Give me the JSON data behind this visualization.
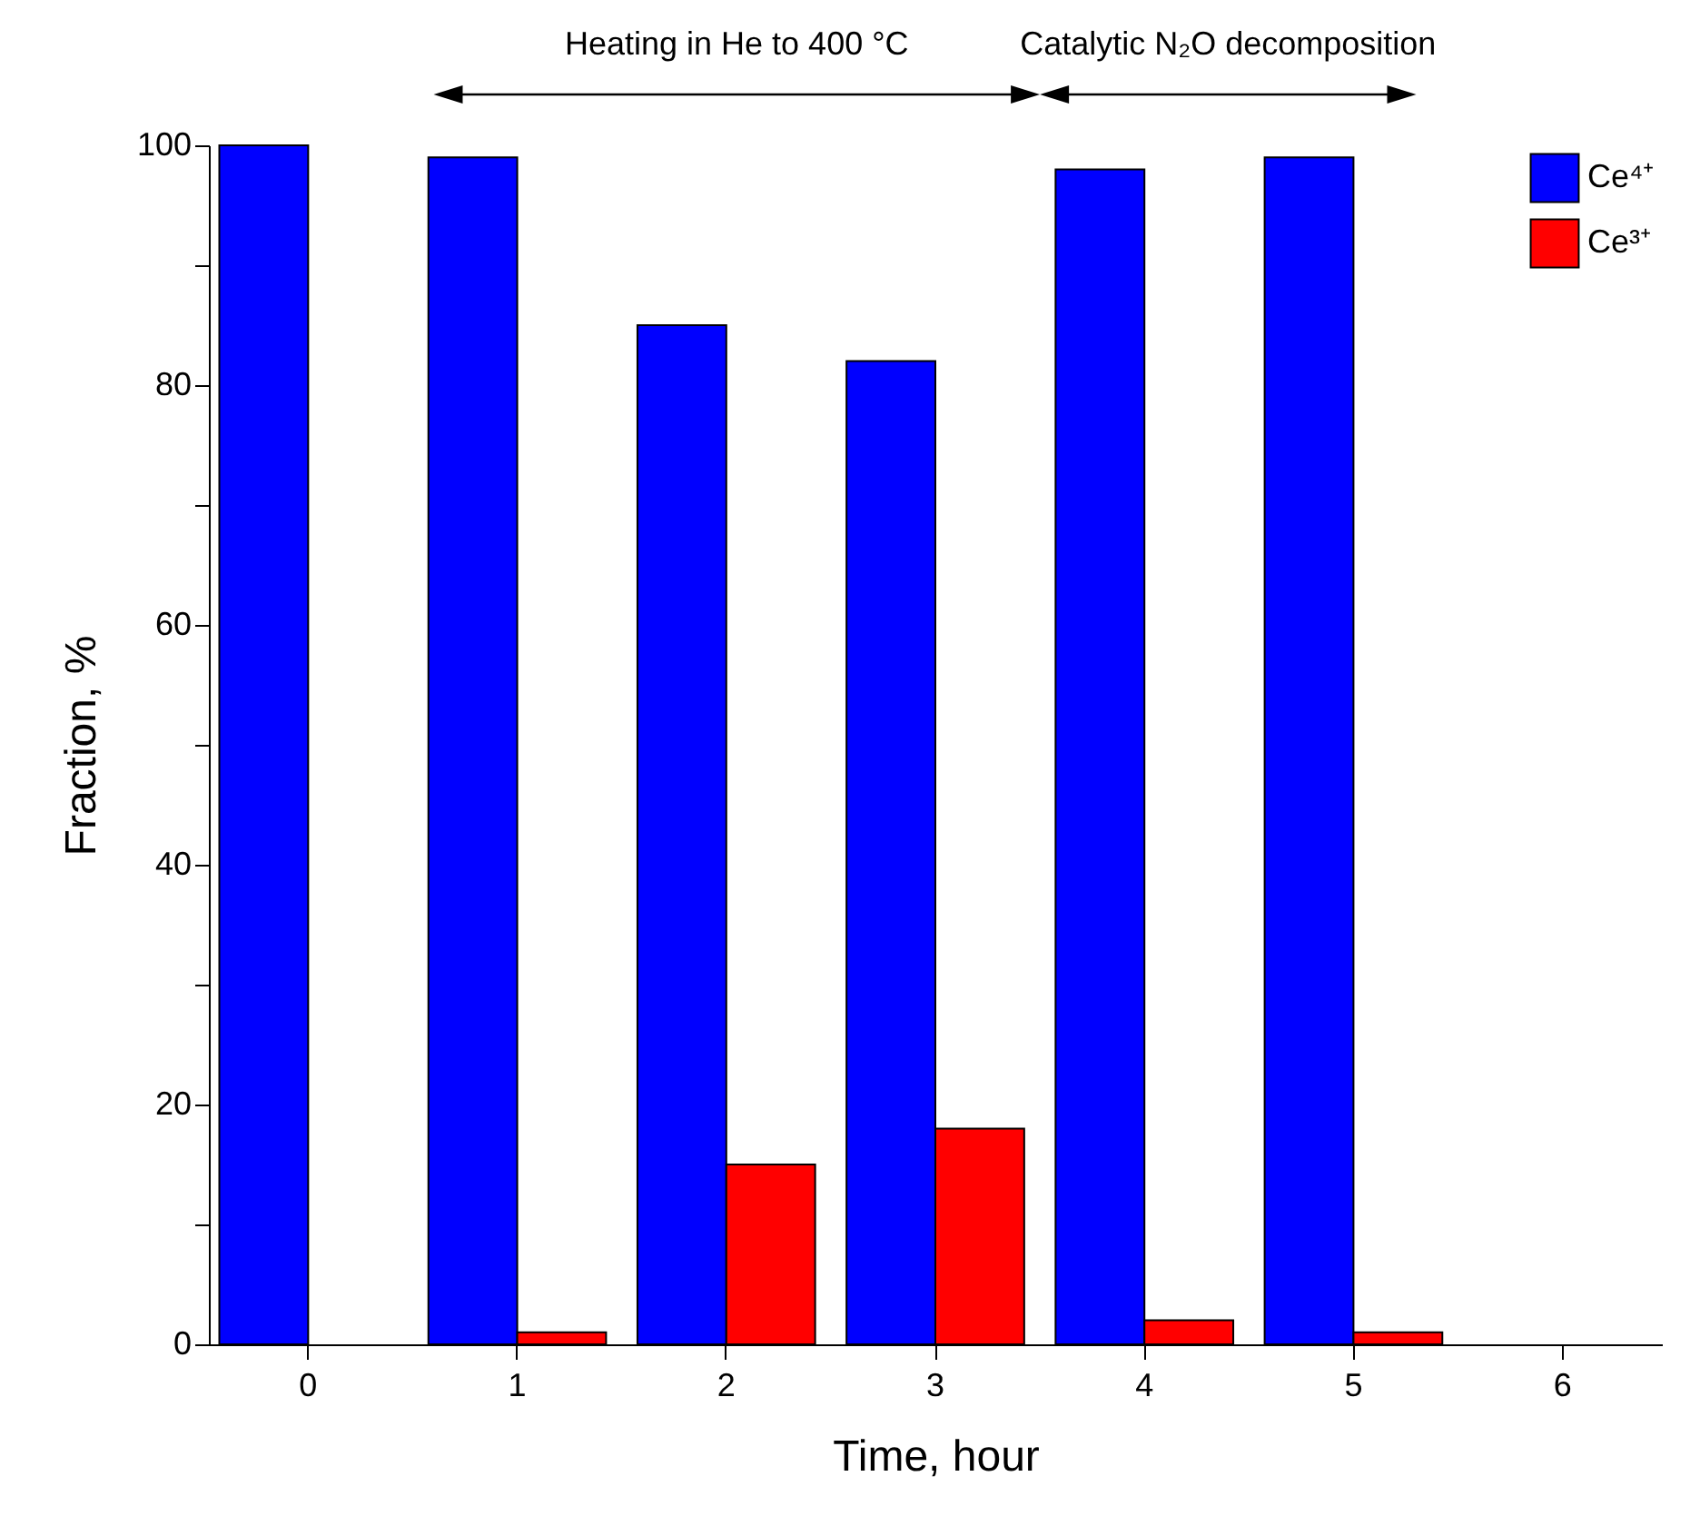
{
  "chart_data": {
    "type": "bar",
    "xlabel": "Time, hour",
    "ylabel": "Fraction, %",
    "categories": [
      "0",
      "1",
      "2",
      "3",
      "4",
      "5",
      "6"
    ],
    "series": [
      {
        "name": "Ce⁴⁺",
        "color": "#0000ff",
        "values": [
          100,
          99,
          85,
          82,
          98,
          99,
          null
        ]
      },
      {
        "name": "Ce³⁺",
        "color": "#ff0000",
        "values": [
          null,
          1,
          15,
          18,
          2,
          1,
          null
        ]
      }
    ],
    "ylim": [
      0,
      100
    ],
    "yticks": [
      0,
      {
        "value": 10,
        "label": null
      },
      20,
      {
        "value": 30,
        "label": null
      },
      40,
      {
        "value": 50,
        "label": null
      },
      60,
      {
        "value": 70,
        "label": null
      },
      80,
      {
        "value": 90,
        "label": null
      },
      100
    ],
    "legend": "top right",
    "grid": false,
    "annotations": [
      "Heating in He to 400 °C",
      "Catalytic N₂O decomposition"
    ]
  }
}
